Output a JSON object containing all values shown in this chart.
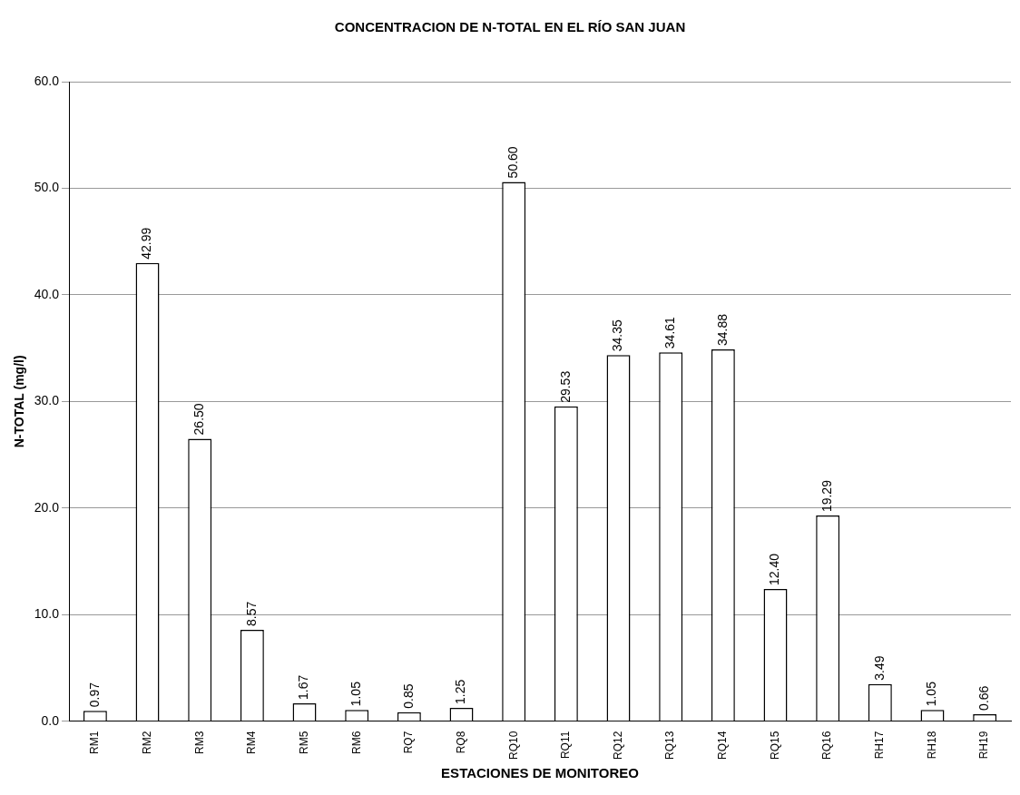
{
  "chart_data": {
    "type": "bar",
    "title": "CONCENTRACION DE N-TOTAL EN EL RÍO SAN JUAN",
    "xlabel": "ESTACIONES DE MONITOREO",
    "ylabel": "N-TOTAL (mg/l)",
    "categories": [
      "RM1",
      "RM2",
      "RM3",
      "RM4",
      "RM5",
      "RM6",
      "RQ7",
      "RQ8",
      "RQ10",
      "RQ11",
      "RQ12",
      "RQ13",
      "RQ14",
      "RQ15",
      "RQ16",
      "RH17",
      "RH18",
      "RH19"
    ],
    "values": [
      0.97,
      42.99,
      26.5,
      8.57,
      1.67,
      1.05,
      0.85,
      1.25,
      50.6,
      29.53,
      34.35,
      34.61,
      34.88,
      12.4,
      19.29,
      3.49,
      1.05,
      0.66
    ],
    "value_labels": [
      "0.97",
      "42.99",
      "26.50",
      "8.57",
      "1.67",
      "1.05",
      "0.85",
      "1.25",
      "50.60",
      "29.53",
      "34.35",
      "34.61",
      "34.88",
      "12.40",
      "19.29",
      "3.49",
      "1.05",
      "0.66"
    ],
    "color": "#ffffff",
    "ylim": [
      0,
      60
    ],
    "yticks": [
      {
        "value": 0,
        "label": "0.0"
      },
      {
        "value": 10,
        "label": "10.0"
      },
      {
        "value": 20,
        "label": "20.0"
      },
      {
        "value": 30,
        "label": "30.0"
      },
      {
        "value": 40,
        "label": "40.0"
      },
      {
        "value": 50,
        "label": "50.0"
      },
      {
        "value": 60,
        "label": "60.0"
      }
    ],
    "grid": "y",
    "legend": false
  }
}
